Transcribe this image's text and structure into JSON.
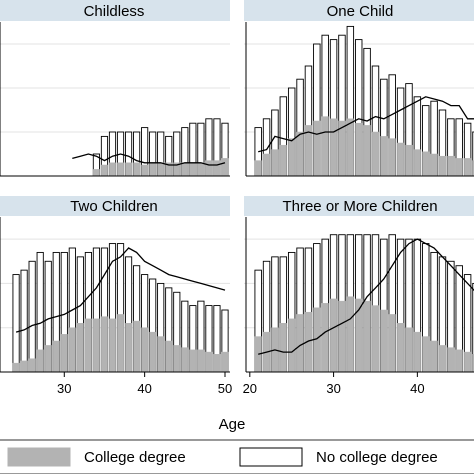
{
  "chart_data": {
    "type": "bar",
    "xlabel": "Age",
    "x_ticks": [
      "20",
      "30",
      "40",
      "50"
    ],
    "legend": {
      "placement": "bottom",
      "entries": [
        {
          "label": "College degree",
          "color": "#b3b3b3"
        },
        {
          "label": "No college degree",
          "color": "#ffffff"
        }
      ]
    },
    "colors": {
      "panel_header": "#d7e3ec",
      "college_fill": "#b3b3b3",
      "total_fill": "#ffffff",
      "outline": "#000000"
    },
    "grid": true,
    "panels": [
      {
        "title": "Childless",
        "x": [
          24,
          25,
          26,
          27,
          28,
          29,
          30,
          31,
          32,
          33,
          34,
          35,
          36,
          37,
          38,
          39,
          40,
          41,
          42,
          43,
          44,
          45,
          46,
          47,
          48,
          49,
          50
        ],
        "total": [
          0,
          0,
          0,
          0,
          0,
          0,
          0,
          0,
          0,
          0,
          0.5,
          0.9,
          1.0,
          1.0,
          1.0,
          1.0,
          1.1,
          1.0,
          1.0,
          0.9,
          1.0,
          1.1,
          1.2,
          1.2,
          1.3,
          1.3,
          1.2
        ],
        "college": [
          0,
          0,
          0,
          0,
          0,
          0,
          0,
          0,
          0,
          0,
          0.15,
          0.25,
          0.3,
          0.3,
          0.3,
          0.3,
          0.25,
          0.3,
          0.3,
          0.3,
          0.3,
          0.3,
          0.3,
          0.3,
          0.35,
          0.35,
          0.4
        ],
        "line": [
          null,
          null,
          null,
          null,
          null,
          null,
          null,
          0.4,
          0.45,
          0.5,
          0.45,
          0.35,
          0.45,
          0.5,
          0.45,
          0.35,
          0.3,
          0.3,
          0.3,
          0.25,
          0.25,
          0.3,
          0.3,
          0.3,
          0.25,
          0.25,
          0.3
        ]
      },
      {
        "title": "One Child",
        "x": [
          21,
          22,
          23,
          24,
          25,
          26,
          27,
          28,
          29,
          30,
          31,
          32,
          33,
          34,
          35,
          36,
          37,
          38,
          39,
          40,
          41,
          42,
          43,
          44,
          45,
          46,
          47
        ],
        "total": [
          1.1,
          1.3,
          1.5,
          1.8,
          2.0,
          2.2,
          2.5,
          3.0,
          3.2,
          3.1,
          3.2,
          3.4,
          3.1,
          2.9,
          2.5,
          2.2,
          2.3,
          2.0,
          2.1,
          1.8,
          1.6,
          1.7,
          1.5,
          1.3,
          1.3,
          1.2,
          1.0
        ],
        "college": [
          0.35,
          0.5,
          0.6,
          0.7,
          0.85,
          1.0,
          1.15,
          1.25,
          1.35,
          1.3,
          1.25,
          1.3,
          1.2,
          1.15,
          1.0,
          0.9,
          0.85,
          0.75,
          0.7,
          0.6,
          0.55,
          0.5,
          0.45,
          0.45,
          0.4,
          0.4,
          0.35
        ],
        "line": [
          0.55,
          0.6,
          0.9,
          0.85,
          0.8,
          0.95,
          1.0,
          0.95,
          1.0,
          1.0,
          1.1,
          1.2,
          1.3,
          1.25,
          1.35,
          1.3,
          1.4,
          1.5,
          1.6,
          1.7,
          1.8,
          1.75,
          1.7,
          1.6,
          1.6,
          1.3,
          1.3
        ]
      },
      {
        "title": "Two Children",
        "x": [
          24,
          25,
          26,
          27,
          28,
          29,
          30,
          31,
          32,
          33,
          34,
          35,
          36,
          37,
          38,
          39,
          40,
          41,
          42,
          43,
          44,
          45,
          46,
          47,
          48,
          49,
          50
        ],
        "total": [
          2.2,
          2.3,
          2.5,
          2.7,
          2.5,
          2.7,
          2.7,
          2.8,
          2.6,
          2.7,
          2.8,
          2.8,
          2.9,
          2.9,
          2.6,
          2.4,
          2.2,
          2.1,
          2.0,
          1.9,
          1.8,
          1.6,
          1.5,
          1.6,
          1.5,
          1.5,
          1.4
        ],
        "college": [
          0.2,
          0.25,
          0.3,
          0.5,
          0.6,
          0.7,
          0.85,
          1.0,
          1.1,
          1.2,
          1.2,
          1.25,
          1.2,
          1.3,
          1.1,
          1.15,
          1.0,
          0.9,
          0.8,
          0.7,
          0.6,
          0.55,
          0.5,
          0.5,
          0.45,
          0.4,
          0.45
        ],
        "line": [
          0.9,
          0.95,
          1.05,
          1.1,
          1.2,
          1.25,
          1.3,
          1.4,
          1.5,
          1.7,
          1.9,
          2.2,
          2.5,
          2.6,
          2.8,
          2.7,
          2.5,
          2.4,
          2.3,
          2.2,
          2.15,
          2.1,
          2.05,
          2.0,
          1.95,
          1.9,
          1.85
        ]
      },
      {
        "title": "Three or More Children",
        "x": [
          21,
          22,
          23,
          24,
          25,
          26,
          27,
          28,
          29,
          30,
          31,
          32,
          33,
          34,
          35,
          36,
          37,
          38,
          39,
          40,
          41,
          42,
          43,
          44,
          45,
          46,
          47
        ],
        "total": [
          2.3,
          2.5,
          2.6,
          2.6,
          2.7,
          2.8,
          2.8,
          2.9,
          3.0,
          3.1,
          3.1,
          3.1,
          3.1,
          3.1,
          3.1,
          3.0,
          3.1,
          3.0,
          3.0,
          3.0,
          2.9,
          2.7,
          2.6,
          2.5,
          2.4,
          2.2,
          2.0
        ],
        "college": [
          0.8,
          0.9,
          1.0,
          1.1,
          1.2,
          1.3,
          1.35,
          1.45,
          1.55,
          1.65,
          1.6,
          1.7,
          1.65,
          1.6,
          1.5,
          1.4,
          1.3,
          1.1,
          1.0,
          0.9,
          0.8,
          0.7,
          0.6,
          0.55,
          0.5,
          0.45,
          0.4
        ],
        "line": [
          0.4,
          0.45,
          0.5,
          0.45,
          0.45,
          0.6,
          0.7,
          0.75,
          0.9,
          1.0,
          1.1,
          1.2,
          1.4,
          1.7,
          1.9,
          2.1,
          2.4,
          2.7,
          2.9,
          3.0,
          2.9,
          2.8,
          2.6,
          2.4,
          2.2,
          2.0,
          1.8
        ]
      }
    ]
  }
}
